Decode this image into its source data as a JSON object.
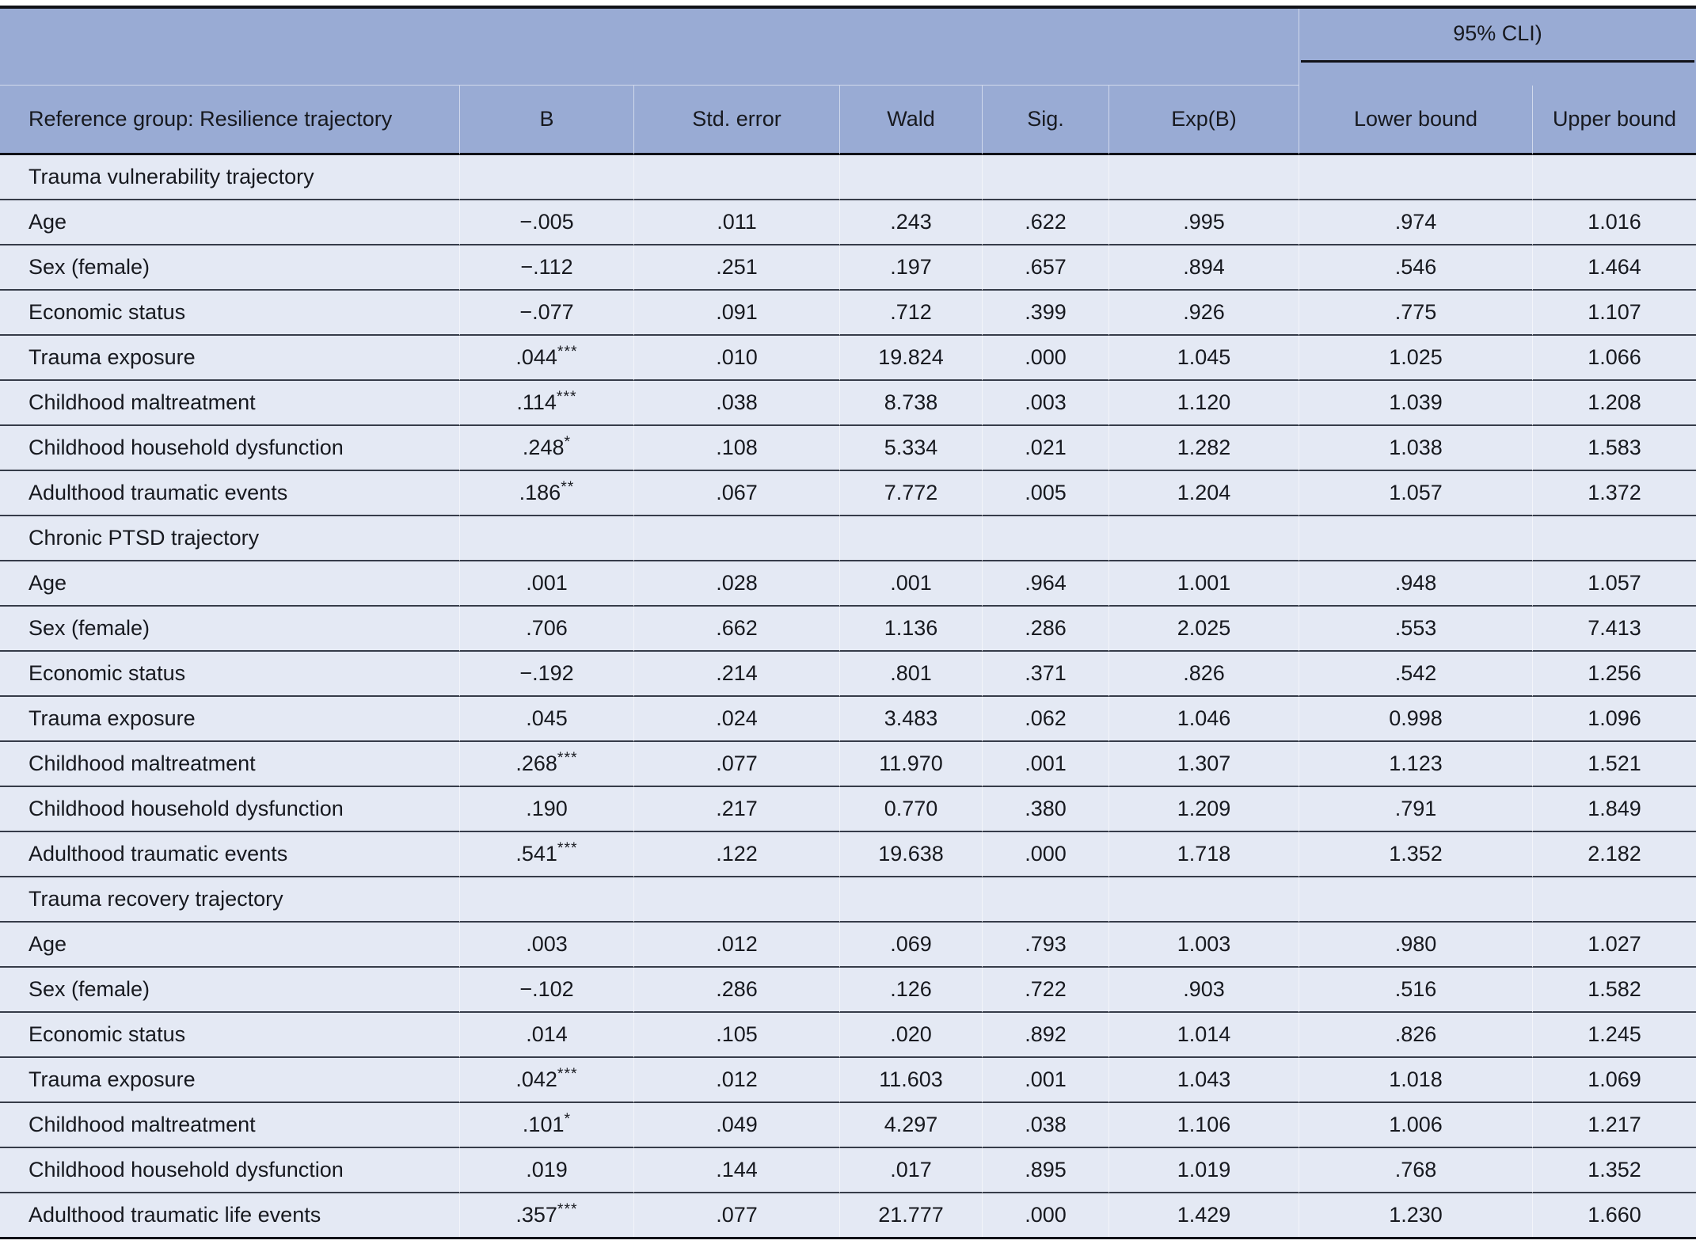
{
  "table": {
    "colors": {
      "header_bg": "#99abd4",
      "row_bg": "#e4e9f4",
      "divider": "#363c49",
      "border_line": "#111218",
      "text": "#17191f"
    },
    "header": {
      "ci_group_label": "95% CLI)",
      "columns": [
        "Reference group: Resilience trajectory",
        "B",
        "Std. error",
        "Wald",
        "Sig.",
        "Exp(B)",
        "Lower bound",
        "Upper bound"
      ]
    },
    "sections": [
      {
        "label": "Trauma vulnerability trajectory",
        "rows": [
          {
            "label": "Age",
            "b": "−.005",
            "stars": "",
            "se": ".011",
            "wald": ".243",
            "sig": ".622",
            "exp_b": ".995",
            "lower": ".974",
            "upper": "1.016"
          },
          {
            "label": "Sex (female)",
            "b": "−.112",
            "stars": "",
            "se": ".251",
            "wald": ".197",
            "sig": ".657",
            "exp_b": ".894",
            "lower": ".546",
            "upper": "1.464"
          },
          {
            "label": "Economic status",
            "b": "−.077",
            "stars": "",
            "se": ".091",
            "wald": ".712",
            "sig": ".399",
            "exp_b": ".926",
            "lower": ".775",
            "upper": "1.107"
          },
          {
            "label": "Trauma exposure",
            "b": ".044",
            "stars": "***",
            "se": ".010",
            "wald": "19.824",
            "sig": ".000",
            "exp_b": "1.045",
            "lower": "1.025",
            "upper": "1.066"
          },
          {
            "label": "Childhood maltreatment",
            "b": ".114",
            "stars": "***",
            "se": ".038",
            "wald": "8.738",
            "sig": ".003",
            "exp_b": "1.120",
            "lower": "1.039",
            "upper": "1.208"
          },
          {
            "label": "Childhood household dysfunction",
            "b": ".248",
            "stars": "*",
            "se": ".108",
            "wald": "5.334",
            "sig": ".021",
            "exp_b": "1.282",
            "lower": "1.038",
            "upper": "1.583"
          },
          {
            "label": "Adulthood traumatic events",
            "b": ".186",
            "stars": "**",
            "se": ".067",
            "wald": "7.772",
            "sig": ".005",
            "exp_b": "1.204",
            "lower": "1.057",
            "upper": "1.372"
          }
        ]
      },
      {
        "label": "Chronic PTSD trajectory",
        "rows": [
          {
            "label": "Age",
            "b": ".001",
            "stars": "",
            "se": ".028",
            "wald": ".001",
            "sig": ".964",
            "exp_b": "1.001",
            "lower": ".948",
            "upper": "1.057"
          },
          {
            "label": "Sex (female)",
            "b": ".706",
            "stars": "",
            "se": ".662",
            "wald": "1.136",
            "sig": ".286",
            "exp_b": "2.025",
            "lower": ".553",
            "upper": "7.413"
          },
          {
            "label": "Economic status",
            "b": "−.192",
            "stars": "",
            "se": ".214",
            "wald": ".801",
            "sig": ".371",
            "exp_b": ".826",
            "lower": ".542",
            "upper": "1.256"
          },
          {
            "label": "Trauma exposure",
            "b": ".045",
            "stars": "",
            "se": ".024",
            "wald": "3.483",
            "sig": ".062",
            "exp_b": "1.046",
            "lower": "0.998",
            "upper": "1.096"
          },
          {
            "label": "Childhood maltreatment",
            "b": ".268",
            "stars": "***",
            "se": ".077",
            "wald": "11.970",
            "sig": ".001",
            "exp_b": "1.307",
            "lower": "1.123",
            "upper": "1.521"
          },
          {
            "label": "Childhood household dysfunction",
            "b": ".190",
            "stars": "",
            "se": ".217",
            "wald": "0.770",
            "sig": ".380",
            "exp_b": "1.209",
            "lower": ".791",
            "upper": "1.849"
          },
          {
            "label": "Adulthood traumatic events",
            "b": ".541",
            "stars": "***",
            "se": ".122",
            "wald": "19.638",
            "sig": ".000",
            "exp_b": "1.718",
            "lower": "1.352",
            "upper": "2.182"
          }
        ]
      },
      {
        "label": "Trauma recovery trajectory",
        "rows": [
          {
            "label": "Age",
            "b": ".003",
            "stars": "",
            "se": ".012",
            "wald": ".069",
            "sig": ".793",
            "exp_b": "1.003",
            "lower": ".980",
            "upper": "1.027"
          },
          {
            "label": "Sex (female)",
            "b": "−.102",
            "stars": "",
            "se": ".286",
            "wald": ".126",
            "sig": ".722",
            "exp_b": ".903",
            "lower": ".516",
            "upper": "1.582"
          },
          {
            "label": "Economic status",
            "b": ".014",
            "stars": "",
            "se": ".105",
            "wald": ".020",
            "sig": ".892",
            "exp_b": "1.014",
            "lower": ".826",
            "upper": "1.245"
          },
          {
            "label": "Trauma exposure",
            "b": ".042",
            "stars": "***",
            "se": ".012",
            "wald": "11.603",
            "sig": ".001",
            "exp_b": "1.043",
            "lower": "1.018",
            "upper": "1.069"
          },
          {
            "label": "Childhood maltreatment",
            "b": ".101",
            "stars": "*",
            "se": ".049",
            "wald": "4.297",
            "sig": ".038",
            "exp_b": "1.106",
            "lower": "1.006",
            "upper": "1.217"
          },
          {
            "label": "Childhood household dysfunction",
            "b": ".019",
            "stars": "",
            "se": ".144",
            "wald": ".017",
            "sig": ".895",
            "exp_b": "1.019",
            "lower": ".768",
            "upper": "1.352"
          },
          {
            "label": "Adulthood traumatic life events",
            "b": ".357",
            "stars": "***",
            "se": ".077",
            "wald": "21.777",
            "sig": ".000",
            "exp_b": "1.429",
            "lower": "1.230",
            "upper": "1.660"
          }
        ]
      }
    ]
  }
}
